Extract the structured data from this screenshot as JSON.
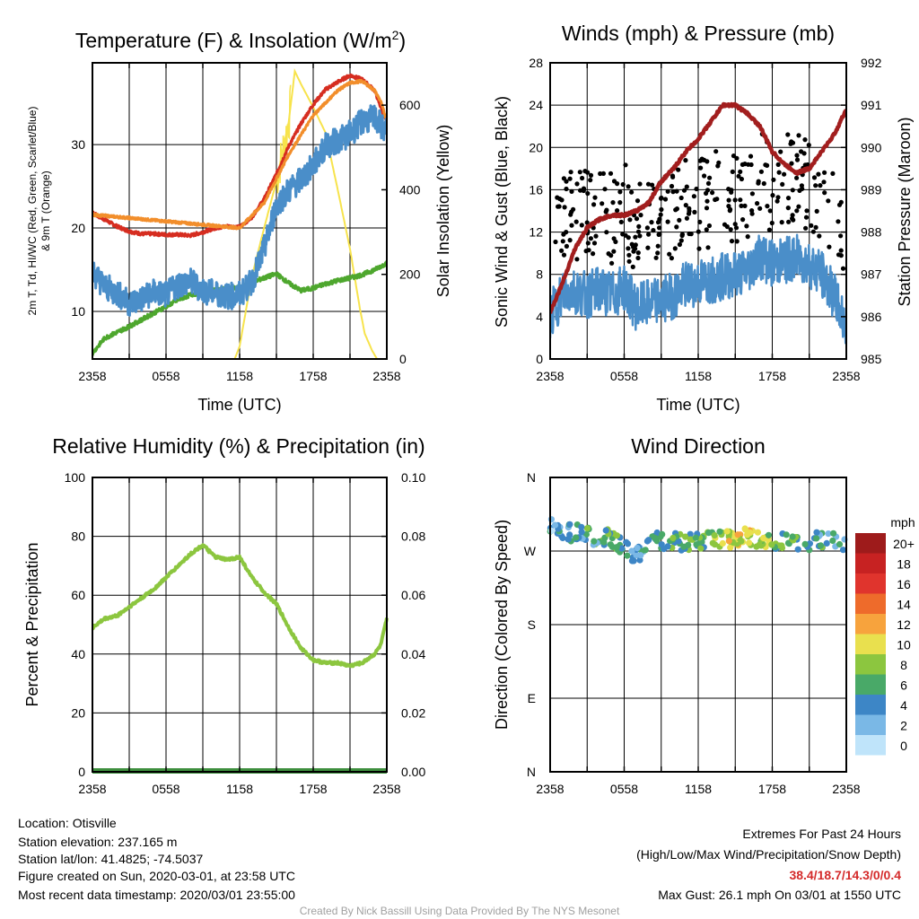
{
  "chart_data": [
    {
      "type": "line",
      "title": "Temperature (F) & Insolation (W/m²)",
      "title_main": "Temperature (F) & Insolation (W/m",
      "title_sup": "2",
      "title_tail": ")",
      "xlabel": "Time (UTC)",
      "ylabel_line1": "2m T, Td, HI/WC (Red, Green, Scarlet/Blue)",
      "ylabel_line2": "& 9m T (Orange)",
      "y2label": "Solar Insolation (Yellow)",
      "x_ticks": [
        "2358",
        "0558",
        "1158",
        "1758",
        "2358"
      ],
      "ylim": [
        4.3,
        39.8
      ],
      "y_ticks": [
        10,
        20,
        30
      ],
      "y2lim": [
        0,
        700
      ],
      "y2_ticks": [
        0,
        200,
        400,
        600
      ],
      "series": [
        {
          "color": "#d62d20",
          "x": [
            0,
            1,
            2,
            3,
            4,
            5,
            6,
            7,
            8,
            9,
            10,
            11,
            12,
            13,
            14,
            15,
            16,
            17,
            18,
            19,
            20,
            21,
            22,
            23,
            24
          ],
          "values": [
            21.8,
            21.0,
            20.2,
            19.6,
            19.3,
            19.3,
            19.2,
            19.2,
            19.1,
            19.5,
            20.0,
            20.2,
            20.1,
            21.3,
            23.5,
            26.5,
            29.8,
            32.5,
            34.8,
            36.6,
            37.5,
            38.3,
            37.8,
            36.5,
            32.5
          ]
        },
        {
          "color": "#f28e2b",
          "x": [
            0,
            12,
            14,
            16,
            18,
            20,
            21,
            22,
            23,
            23.5,
            24
          ],
          "values": [
            21.6,
            20.0,
            23.0,
            28.8,
            33.5,
            36.5,
            37.4,
            37.6,
            36.5,
            35.2,
            32.8
          ]
        },
        {
          "color": "#4ea72e",
          "x": [
            0,
            1,
            2,
            3,
            4,
            5,
            6,
            7,
            8,
            9,
            10,
            11,
            12,
            13,
            14,
            15,
            16,
            17,
            18,
            19,
            20,
            21,
            22,
            23,
            24
          ],
          "values": [
            5.0,
            6.8,
            7.5,
            8.2,
            9.0,
            9.8,
            10.6,
            11.4,
            12.0,
            12.3,
            12.6,
            12.7,
            12.8,
            13.5,
            14.0,
            14.5,
            13.4,
            12.5,
            12.8,
            13.3,
            13.7,
            14.0,
            14.4,
            15.0,
            15.8
          ]
        },
        {
          "color": "#4a8ec9",
          "x": [
            0,
            1,
            2,
            3,
            4,
            5,
            6,
            7,
            8,
            9,
            10,
            11,
            12,
            13,
            14,
            15,
            16,
            17,
            18,
            19,
            20,
            21,
            22,
            23,
            24
          ],
          "values": [
            14.8,
            13.0,
            12.2,
            11.0,
            11.5,
            12.3,
            12.0,
            13.2,
            13.6,
            12.5,
            12.2,
            11.8,
            12.0,
            13.5,
            17.5,
            22.8,
            24.5,
            25.8,
            27.5,
            29.8,
            30.5,
            31.3,
            32.8,
            33.2,
            31.5
          ]
        }
      ],
      "insolation": {
        "color": "#f7e34c",
        "x": [
          0,
          11.6,
          12,
          13,
          14,
          15,
          16,
          16.5,
          17,
          18,
          19,
          20,
          21,
          21.8,
          22.2,
          22.8,
          23.2,
          24
        ],
        "values": [
          0,
          0,
          30,
          195,
          310,
          420,
          560,
          680,
          650,
          595,
          535,
          400,
          260,
          120,
          60,
          20,
          0,
          0
        ]
      }
    },
    {
      "type": "line",
      "title": "Winds (mph) & Pressure (mb)",
      "xlabel": "Time (UTC)",
      "ylabel": "Sonic Wind & Gust (Blue, Black)",
      "y2label": "Station Pressure (Maroon)",
      "x_ticks": [
        "2358",
        "0558",
        "1158",
        "1758",
        "2358"
      ],
      "ylim": [
        0,
        28
      ],
      "y_ticks": [
        0,
        4,
        8,
        12,
        16,
        20,
        24,
        28
      ],
      "y2lim": [
        985,
        992
      ],
      "y2_ticks": [
        985,
        986,
        987,
        988,
        989,
        990,
        991,
        992
      ],
      "wind": {
        "color": "#4a8ec9",
        "x": [
          0,
          1,
          2,
          3,
          4,
          5,
          6,
          7,
          8,
          9,
          10,
          11,
          12,
          13,
          14,
          15,
          16,
          17,
          18,
          19,
          20,
          21,
          22,
          23,
          24
        ],
        "values": [
          4.0,
          6.2,
          6.5,
          6.0,
          6.6,
          6.0,
          6.8,
          4.8,
          5.3,
          5.6,
          6.0,
          7.0,
          7.2,
          7.5,
          7.8,
          8.0,
          8.4,
          9.8,
          9.0,
          9.3,
          9.5,
          9.0,
          8.0,
          6.0,
          3.0
        ]
      },
      "pressure": {
        "color": "#a21e1e",
        "x": [
          0,
          1,
          2,
          3,
          4,
          5,
          6,
          7,
          8,
          9,
          10,
          11,
          12,
          13,
          14,
          15,
          16,
          17,
          18,
          19,
          20,
          21,
          22,
          23,
          24
        ],
        "values": [
          986.1,
          986.8,
          987.6,
          988.1,
          988.3,
          988.4,
          988.4,
          988.5,
          988.7,
          989.2,
          989.5,
          989.9,
          990.2,
          990.6,
          991.0,
          991.0,
          990.8,
          990.5,
          989.9,
          989.6,
          989.4,
          989.5,
          989.9,
          990.3,
          990.9
        ]
      },
      "gusts": {
        "color": "#000000",
        "note": "scattered gust points 4–26 mph"
      }
    },
    {
      "type": "line",
      "title": "Relative Humidity (%) & Precipitation (in)",
      "ylabel": "Percent & Precipitation",
      "x_ticks": [
        "2358",
        "0558",
        "1158",
        "1758",
        "2358"
      ],
      "ylim": [
        0,
        100
      ],
      "y_ticks": [
        0,
        20,
        40,
        60,
        80,
        100
      ],
      "y2lim": [
        0,
        0.1
      ],
      "y2_ticks": [
        "0.00",
        "0.02",
        "0.04",
        "0.06",
        "0.08",
        "0.10"
      ],
      "rh": {
        "color": "#8cc63f",
        "x": [
          0,
          1,
          2,
          3,
          4,
          5,
          6,
          7,
          8,
          9,
          10,
          11,
          12,
          13,
          14,
          15,
          16,
          17,
          18,
          19,
          20,
          21,
          22,
          23,
          23.5,
          24
        ],
        "values": [
          49,
          52,
          53,
          56,
          59,
          62,
          66,
          70,
          74,
          77,
          73,
          72,
          73,
          66,
          61,
          57,
          49,
          42,
          38,
          37,
          37,
          36,
          37,
          40,
          43,
          52
        ]
      },
      "precip": {
        "color": "#3e8f3e",
        "values": [
          0,
          0
        ]
      }
    },
    {
      "type": "scatter",
      "title": "Wind Direction",
      "ylabel": "Direction (Colored By Speed)",
      "x_ticks": [
        "2358",
        "0558",
        "1158",
        "1758",
        "2358"
      ],
      "y_ticks": [
        "N",
        "W",
        "S",
        "E",
        "N"
      ],
      "legend_title": "mph",
      "legend_labels": [
        "20+",
        "18",
        "16",
        "14",
        "12",
        "10",
        "8",
        "6",
        "4",
        "2",
        "0"
      ],
      "legend_colors": [
        "#9e1b1b",
        "#c72222",
        "#e0342d",
        "#ee6b2b",
        "#f7a33d",
        "#e9e04e",
        "#8cc63f",
        "#49a968",
        "#3d86c6",
        "#7ab8e6",
        "#bfe4fa"
      ]
    }
  ],
  "footer": {
    "location": "Location: Otisville",
    "elevation": "Station elevation: 237.165 m",
    "latlon": "Station lat/lon: 41.4825; -74.5037",
    "created": "Figure created on Sun, 2020-03-01, at 23:58 UTC",
    "recent": "Most recent data timestamp: 2020/03/01 23:55:00",
    "extremes_title": "Extremes For Past 24 Hours",
    "extremes_sub": "(High/Low/Max Wind/Precipitation/Snow Depth)",
    "extremes_values": "38.4/18.7/14.3/0/0.4",
    "max_gust": "Max Gust: 26.1 mph On 03/01 at 1550 UTC",
    "credit": "Created By Nick Bassill Using Data Provided By The NYS Mesonet"
  }
}
